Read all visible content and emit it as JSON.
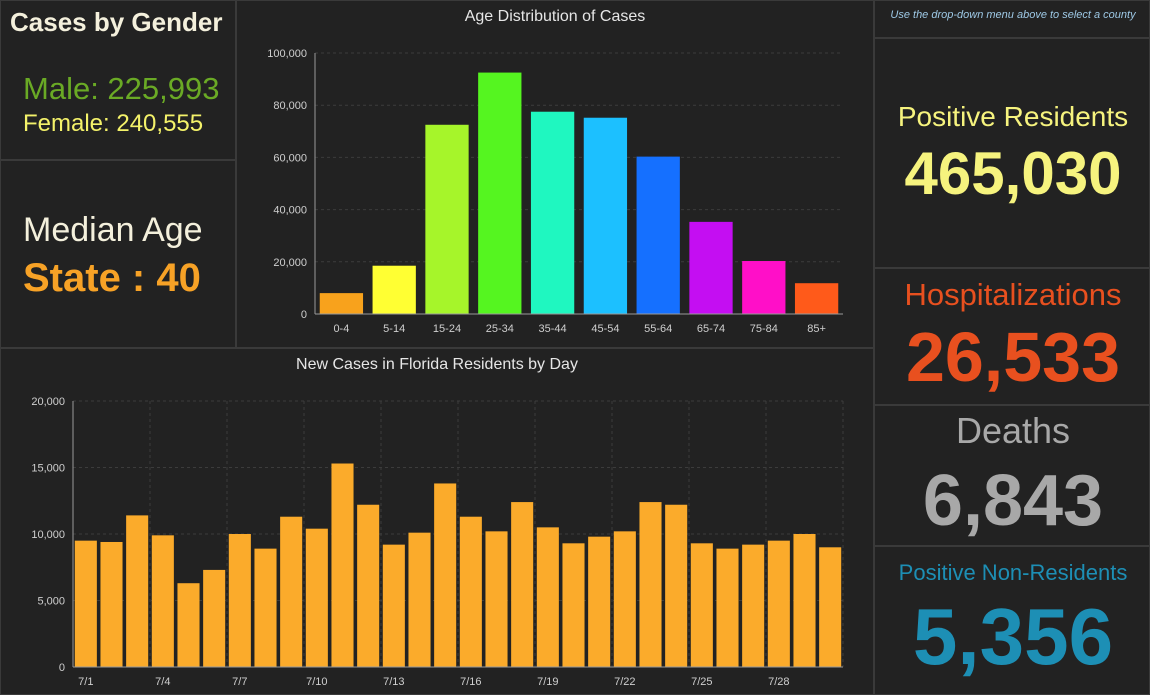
{
  "gender_panel": {
    "title": "Cases by Gender",
    "male": "Male: 225,993",
    "female": "Female: 240,555"
  },
  "median_panel": {
    "label": "Median Age",
    "value": "State : 40"
  },
  "instruction": "Use the drop-down menu above to select a county",
  "stats": {
    "positive_label": "Positive Residents",
    "positive_value": "465,030",
    "hosp_label": "Hospitalizations",
    "hosp_value": "26,533",
    "deaths_label": "Deaths",
    "deaths_value": "6,843",
    "nonres_label": "Positive Non-Residents",
    "nonres_value": "5,356"
  },
  "colors": {
    "male": "#6aaa25",
    "female": "#f4f26a",
    "median": "#f7a226",
    "positive": "#f6f37e",
    "hosp": "#e8501f",
    "deaths": "#a8a8a8",
    "nonres": "#1d8fb5",
    "daily_bar": "#fbab2b"
  },
  "chart_data": [
    {
      "type": "bar",
      "title": "Age Distribution of Cases",
      "categories": [
        "0-4",
        "5-14",
        "15-24",
        "25-34",
        "35-44",
        "45-54",
        "55-64",
        "65-74",
        "75-84",
        "85+"
      ],
      "values": [
        8000,
        18500,
        72500,
        92500,
        77500,
        75200,
        60300,
        35300,
        20300,
        11800
      ],
      "colors": [
        "#f8a21c",
        "#ffff33",
        "#a6f52a",
        "#55f520",
        "#1ff7c0",
        "#1cc0ff",
        "#1570ff",
        "#c40ef2",
        "#ff0fc8",
        "#ff5a1a"
      ],
      "ylim": [
        0,
        100000
      ],
      "yticks": [
        0,
        20000,
        40000,
        60000,
        80000,
        100000
      ],
      "ytick_labels": [
        "0",
        "20,000",
        "40,000",
        "60,000",
        "80,000",
        "100,000"
      ],
      "grid": true
    },
    {
      "type": "bar",
      "title": "New Cases in Florida Residents by Day",
      "x": [
        "7/1",
        "7/2",
        "7/3",
        "7/4",
        "7/5",
        "7/6",
        "7/7",
        "7/8",
        "7/9",
        "7/10",
        "7/11",
        "7/12",
        "7/13",
        "7/14",
        "7/15",
        "7/16",
        "7/17",
        "7/18",
        "7/19",
        "7/20",
        "7/21",
        "7/22",
        "7/23",
        "7/24",
        "7/25",
        "7/26",
        "7/27",
        "7/28",
        "7/29",
        "7/30"
      ],
      "values": [
        9500,
        9400,
        11400,
        9900,
        6300,
        7300,
        10000,
        8900,
        11300,
        10400,
        15300,
        12200,
        9200,
        10100,
        13800,
        11300,
        10200,
        12400,
        10500,
        9300,
        9800,
        10200,
        12400,
        12200,
        9300,
        8900,
        9200,
        9500,
        10000,
        9000
      ],
      "xtick_labels": [
        "7/1",
        "7/4",
        "7/7",
        "7/10",
        "7/13",
        "7/16",
        "7/19",
        "7/22",
        "7/25",
        "7/28"
      ],
      "ylim": [
        0,
        20000
      ],
      "yticks": [
        0,
        5000,
        10000,
        15000,
        20000
      ],
      "ytick_labels": [
        "0",
        "5,000",
        "10,000",
        "15,000",
        "20,000"
      ],
      "grid": true
    }
  ]
}
